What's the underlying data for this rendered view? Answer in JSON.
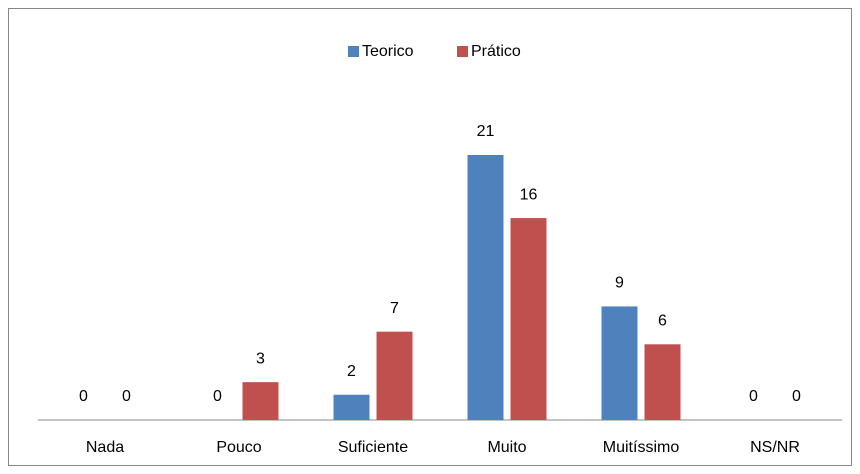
{
  "chart_data": {
    "type": "bar",
    "categories": [
      "Nada",
      "Pouco",
      "Suficiente",
      "Muito",
      "Muitíssimo",
      "NS/NR"
    ],
    "series": [
      {
        "name": "Teorico",
        "color": "#4f81bd",
        "values": [
          0,
          0,
          2,
          21,
          9,
          0
        ]
      },
      {
        "name": "Prático",
        "color": "#c0504d",
        "values": [
          0,
          3,
          7,
          16,
          6,
          0
        ]
      }
    ],
    "legend": "top"
  }
}
